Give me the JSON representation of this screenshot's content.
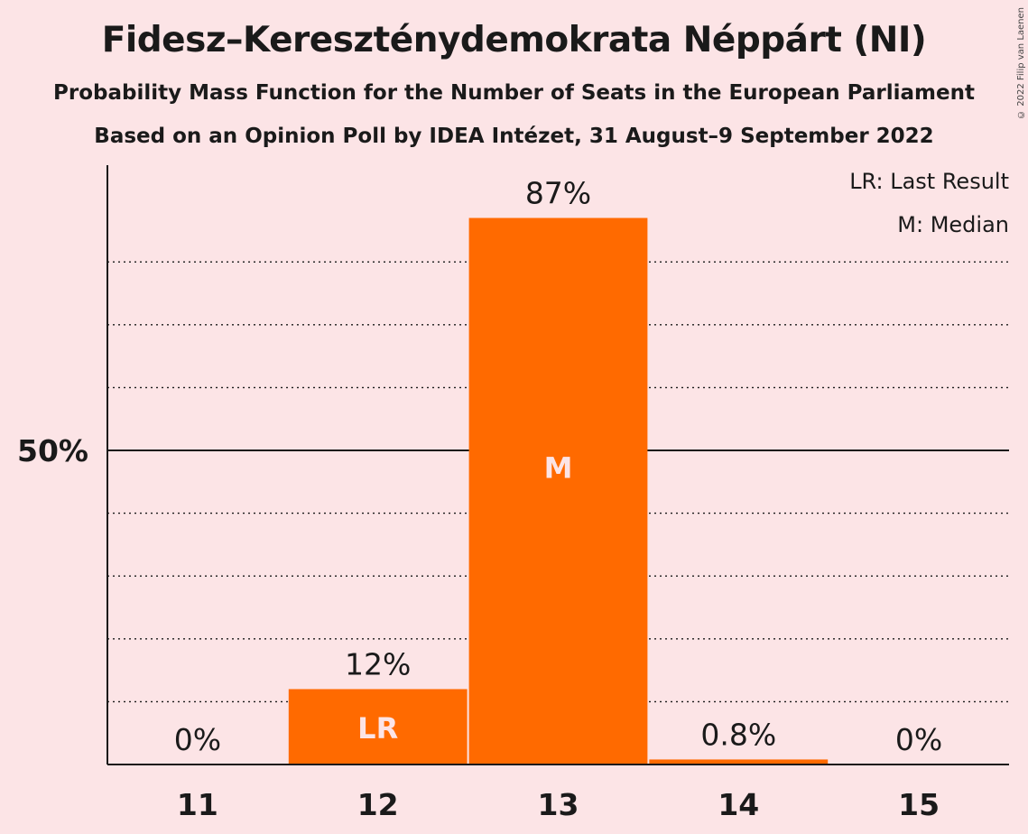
{
  "title": "Fidesz–Kereszténydemokrata Néppárt (NI)",
  "subtitle": "Probability Mass Function for the Number of Seats in the European Parliament",
  "subtitle2": "Based on an Opinion Poll by IDEA Intézet, 31 August–9 September 2022",
  "copyright": "© 2022 Filip van Laenen",
  "legend": {
    "last_result": "LR: Last Result",
    "median": "M: Median"
  },
  "colors": {
    "background": "#fce4e6",
    "bar": "#ff6a00",
    "marker_text": "#fce4e6",
    "axis": "#1a1a1a"
  },
  "chart_data": {
    "type": "bar",
    "categories": [
      "11",
      "12",
      "13",
      "14",
      "15"
    ],
    "values": [
      0,
      12,
      87,
      0.8,
      0
    ],
    "value_labels": [
      "0%",
      "12%",
      "87%",
      "0.8%",
      "0%"
    ],
    "markers": [
      "",
      "LR",
      "M",
      "",
      ""
    ],
    "ytick_labels": [
      "50%"
    ],
    "ytick_values": [
      50
    ],
    "ylim": [
      0,
      95
    ],
    "minor_gridlines": [
      10,
      20,
      30,
      40,
      60,
      70,
      80
    ],
    "grid": true,
    "legend_position": "top-right",
    "xlabel": "",
    "ylabel": ""
  }
}
